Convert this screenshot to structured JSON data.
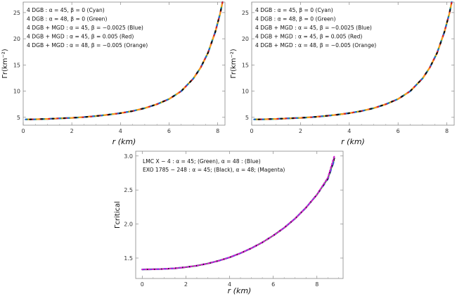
{
  "chart_data": [
    {
      "type": "line",
      "ylabel": "Γr(km⁻²)",
      "xlabel": "r (km)",
      "xlim": [
        0,
        8.3
      ],
      "ylim": [
        3.5,
        27
      ],
      "xticks": [
        0,
        2,
        4,
        6,
        8
      ],
      "yticks": [
        5,
        10,
        15,
        20,
        25
      ],
      "legend_position": "top-left",
      "series": [
        {
          "name": "4 DGB : α = 45, β = 0 (Cyan)",
          "color": "#00c8e6",
          "dash": "solid",
          "x": [
            0.1,
            0.5,
            1,
            1.5,
            2,
            2.5,
            3,
            3.5,
            4,
            4.5,
            5,
            5.5,
            6,
            6.5,
            7,
            7.3,
            7.6,
            7.9,
            8.1,
            8.2
          ],
          "y": [
            4.6,
            4.63,
            4.7,
            4.8,
            4.9,
            5.05,
            5.25,
            5.5,
            5.8,
            6.2,
            6.75,
            7.5,
            8.5,
            10,
            12.4,
            14.5,
            17.3,
            21.3,
            24.8,
            27
          ]
        },
        {
          "name": "4 DGB : α = 48, β = 0 (Green)",
          "color": "#2e9e2e",
          "dash": "6,6",
          "x": [
            0.1,
            0.5,
            1,
            1.5,
            2,
            2.5,
            3,
            3.5,
            4,
            4.5,
            5,
            5.5,
            6,
            6.5,
            7,
            7.3,
            7.6,
            7.9,
            8.1,
            8.2
          ],
          "y": [
            4.6,
            4.63,
            4.7,
            4.8,
            4.9,
            5.05,
            5.25,
            5.5,
            5.8,
            6.2,
            6.75,
            7.5,
            8.5,
            10,
            12.4,
            14.5,
            17.3,
            21.3,
            24.8,
            27
          ]
        },
        {
          "name": "4 DGB + MGD : α = 45, β = −0.0025 (Blue)",
          "color": "#2a5fd8",
          "dash": "5,7",
          "x": [
            0.1,
            0.5,
            1,
            1.5,
            2,
            2.5,
            3,
            3.5,
            4,
            4.5,
            5,
            5.5,
            6,
            6.5,
            7,
            7.3,
            7.6,
            7.9,
            8.1,
            8.2
          ],
          "y": [
            4.6,
            4.63,
            4.7,
            4.8,
            4.9,
            5.05,
            5.25,
            5.5,
            5.8,
            6.2,
            6.75,
            7.5,
            8.5,
            10,
            12.4,
            14.5,
            17.3,
            21.3,
            24.8,
            27
          ]
        },
        {
          "name": "4 DGB + MGD : α = 45, β = 0.005 (Red)",
          "color": "#e02020",
          "dash": "4,8",
          "x": [
            0.1,
            0.5,
            1,
            1.5,
            2,
            2.5,
            3,
            3.5,
            4,
            4.5,
            5,
            5.5,
            6,
            6.5,
            7,
            7.3,
            7.6,
            7.9,
            8.1,
            8.2
          ],
          "y": [
            4.6,
            4.63,
            4.7,
            4.8,
            4.9,
            5.05,
            5.25,
            5.5,
            5.8,
            6.2,
            6.75,
            7.5,
            8.5,
            10,
            12.4,
            14.5,
            17.3,
            21.3,
            24.8,
            27
          ]
        },
        {
          "name": "4 DGB + MGD : α = 48, β = −0.005 (Orange)",
          "color": "#ff9a1a",
          "dash": "3,9",
          "x": [
            0.1,
            0.5,
            1,
            1.5,
            2,
            2.5,
            3,
            3.5,
            4,
            4.5,
            5,
            5.5,
            6,
            6.5,
            7,
            7.3,
            7.6,
            7.9,
            8.1,
            8.2
          ],
          "y": [
            4.6,
            4.63,
            4.7,
            4.8,
            4.9,
            5.05,
            5.25,
            5.5,
            5.8,
            6.2,
            6.75,
            7.5,
            8.5,
            10,
            12.4,
            14.5,
            17.3,
            21.3,
            24.8,
            27
          ]
        },
        {
          "name": "",
          "color": "#111111",
          "dash": "2,14",
          "x": [
            0.1,
            0.5,
            1,
            1.5,
            2,
            2.5,
            3,
            3.5,
            4,
            4.5,
            5,
            5.5,
            6,
            6.5,
            7,
            7.3,
            7.6,
            7.9,
            8.1,
            8.2
          ],
          "y": [
            4.6,
            4.63,
            4.7,
            4.8,
            4.9,
            5.05,
            5.25,
            5.5,
            5.8,
            6.2,
            6.75,
            7.5,
            8.5,
            10,
            12.4,
            14.5,
            17.3,
            21.3,
            24.8,
            27
          ]
        }
      ]
    },
    {
      "type": "line",
      "ylabel": "Γr(km⁻²)",
      "xlabel": "r (km)",
      "xlim": [
        0,
        8.3
      ],
      "ylim": [
        3.5,
        27
      ],
      "xticks": [
        0,
        2,
        4,
        6,
        8
      ],
      "yticks": [
        5,
        10,
        15,
        20,
        25
      ],
      "legend_position": "top-left",
      "series": [
        {
          "name": "4 DGB : α = 45, β = 0 (Cyan)",
          "color": "#00c8e6",
          "dash": "solid",
          "x": [
            0.1,
            0.5,
            1,
            1.5,
            2,
            2.5,
            3,
            3.5,
            4,
            4.5,
            5,
            5.5,
            6,
            6.5,
            7,
            7.3,
            7.6,
            7.9,
            8.1,
            8.2
          ],
          "y": [
            4.6,
            4.63,
            4.7,
            4.8,
            4.9,
            5.05,
            5.25,
            5.5,
            5.8,
            6.2,
            6.75,
            7.5,
            8.5,
            10,
            12.4,
            14.5,
            17.3,
            21.3,
            24.8,
            27
          ]
        },
        {
          "name": "4 DGB : α = 48, β = 0 (Green)",
          "color": "#2e9e2e",
          "dash": "6,6",
          "x": [
            0.1,
            0.5,
            1,
            1.5,
            2,
            2.5,
            3,
            3.5,
            4,
            4.5,
            5,
            5.5,
            6,
            6.5,
            7,
            7.3,
            7.6,
            7.9,
            8.1,
            8.2
          ],
          "y": [
            4.6,
            4.63,
            4.7,
            4.8,
            4.9,
            5.05,
            5.25,
            5.5,
            5.8,
            6.2,
            6.75,
            7.5,
            8.5,
            10,
            12.4,
            14.5,
            17.3,
            21.3,
            24.8,
            27
          ]
        },
        {
          "name": "4 DGB + MGD : α = 45, β = −0.0025 (Blue)",
          "color": "#2a5fd8",
          "dash": "5,7",
          "x": [
            0.1,
            0.5,
            1,
            1.5,
            2,
            2.5,
            3,
            3.5,
            4,
            4.5,
            5,
            5.5,
            6,
            6.5,
            7,
            7.3,
            7.6,
            7.9,
            8.1,
            8.2
          ],
          "y": [
            4.6,
            4.63,
            4.7,
            4.8,
            4.9,
            5.05,
            5.25,
            5.5,
            5.8,
            6.2,
            6.75,
            7.5,
            8.5,
            10,
            12.4,
            14.5,
            17.3,
            21.3,
            24.8,
            27
          ]
        },
        {
          "name": "4 DGB + MGD : α = 45, β = 0.005 (Red)",
          "color": "#e02020",
          "dash": "4,8",
          "x": [
            0.1,
            0.5,
            1,
            1.5,
            2,
            2.5,
            3,
            3.5,
            4,
            4.5,
            5,
            5.5,
            6,
            6.5,
            7,
            7.3,
            7.6,
            7.9,
            8.1,
            8.2
          ],
          "y": [
            4.6,
            4.63,
            4.7,
            4.8,
            4.9,
            5.05,
            5.25,
            5.5,
            5.8,
            6.2,
            6.75,
            7.5,
            8.5,
            10,
            12.4,
            14.5,
            17.3,
            21.3,
            24.8,
            27
          ]
        },
        {
          "name": "4 DGB + MGD : α = 48, β = −0.005 (Orange)",
          "color": "#ff9a1a",
          "dash": "3,9",
          "x": [
            0.1,
            0.5,
            1,
            1.5,
            2,
            2.5,
            3,
            3.5,
            4,
            4.5,
            5,
            5.5,
            6,
            6.5,
            7,
            7.3,
            7.6,
            7.9,
            8.1,
            8.2
          ],
          "y": [
            4.6,
            4.63,
            4.7,
            4.8,
            4.9,
            5.05,
            5.25,
            5.5,
            5.8,
            6.2,
            6.75,
            7.5,
            8.5,
            10,
            12.4,
            14.5,
            17.3,
            21.3,
            24.8,
            27
          ]
        },
        {
          "name": "",
          "color": "#111111",
          "dash": "2,14",
          "x": [
            0.1,
            0.5,
            1,
            1.5,
            2,
            2.5,
            3,
            3.5,
            4,
            4.5,
            5,
            5.5,
            6,
            6.5,
            7,
            7.3,
            7.6,
            7.9,
            8.1,
            8.2
          ],
          "y": [
            4.6,
            4.63,
            4.7,
            4.8,
            4.9,
            5.05,
            5.25,
            5.5,
            5.8,
            6.2,
            6.75,
            7.5,
            8.5,
            10,
            12.4,
            14.5,
            17.3,
            21.3,
            24.8,
            27
          ]
        }
      ]
    },
    {
      "type": "line",
      "ylabel": "Γcritical",
      "xlabel": "r (km)",
      "xlim": [
        -0.3,
        9.2
      ],
      "ylim": [
        1.2,
        3.07
      ],
      "xticks": [
        0,
        2,
        4,
        6,
        8
      ],
      "yticks": [
        1.5,
        2.0,
        2.5,
        3.0
      ],
      "yticklabels": [
        "1.5",
        "2.0",
        "2.5",
        "3.0"
      ],
      "legend_position": "top-left",
      "legend_lines": [
        "LMC X − 4 : α = 45;  (Green),  α = 48 : (Blue)",
        "EXO 1785 − 248 : α = 45; (Black),  α = 48; (Magenta)"
      ],
      "series": [
        {
          "name": "LMC X − 4 : α = 45 (Green)",
          "color": "#2e9e2e",
          "dash": "6,4",
          "x": [
            0,
            0.5,
            1,
            1.5,
            2,
            2.5,
            3,
            3.5,
            4,
            4.5,
            5,
            5.5,
            6,
            6.5,
            7,
            7.5,
            8,
            8.5,
            8.8
          ],
          "y": [
            1.333,
            1.335,
            1.34,
            1.35,
            1.366,
            1.388,
            1.42,
            1.46,
            1.51,
            1.572,
            1.645,
            1.73,
            1.83,
            1.945,
            2.08,
            2.24,
            2.43,
            2.67,
            2.96
          ]
        },
        {
          "name": "LMC X − 4 : α = 48 (Blue)",
          "color": "#2a5fd8",
          "dash": "5,6",
          "x": [
            0,
            0.5,
            1,
            1.5,
            2,
            2.5,
            3,
            3.5,
            4,
            4.5,
            5,
            5.5,
            6,
            6.5,
            7,
            7.5,
            8,
            8.5,
            8.8
          ],
          "y": [
            1.333,
            1.335,
            1.34,
            1.35,
            1.366,
            1.388,
            1.42,
            1.46,
            1.51,
            1.572,
            1.645,
            1.73,
            1.83,
            1.945,
            2.08,
            2.24,
            2.43,
            2.66,
            2.94
          ]
        },
        {
          "name": "EXO 1785 − 248 : α = 45 (Black)",
          "color": "#111111",
          "dash": "3,7",
          "x": [
            0,
            0.5,
            1,
            1.5,
            2,
            2.5,
            3,
            3.5,
            4,
            4.5,
            5,
            5.5,
            6,
            6.5,
            7,
            7.5,
            8,
            8.5,
            8.8
          ],
          "y": [
            1.333,
            1.335,
            1.34,
            1.35,
            1.366,
            1.388,
            1.42,
            1.46,
            1.51,
            1.572,
            1.645,
            1.73,
            1.83,
            1.945,
            2.08,
            2.24,
            2.43,
            2.67,
            2.97
          ]
        },
        {
          "name": "EXO 1785 − 248 : α = 48 (Magenta)",
          "color": "#d020d0",
          "dash": "2,3",
          "x": [
            0,
            0.5,
            1,
            1.5,
            2,
            2.5,
            3,
            3.5,
            4,
            4.5,
            5,
            5.5,
            6,
            6.5,
            7,
            7.5,
            8,
            8.5,
            8.8
          ],
          "y": [
            1.333,
            1.335,
            1.34,
            1.35,
            1.366,
            1.388,
            1.42,
            1.46,
            1.51,
            1.572,
            1.645,
            1.73,
            1.83,
            1.945,
            2.08,
            2.24,
            2.43,
            2.68,
            3.0
          ]
        }
      ]
    }
  ]
}
